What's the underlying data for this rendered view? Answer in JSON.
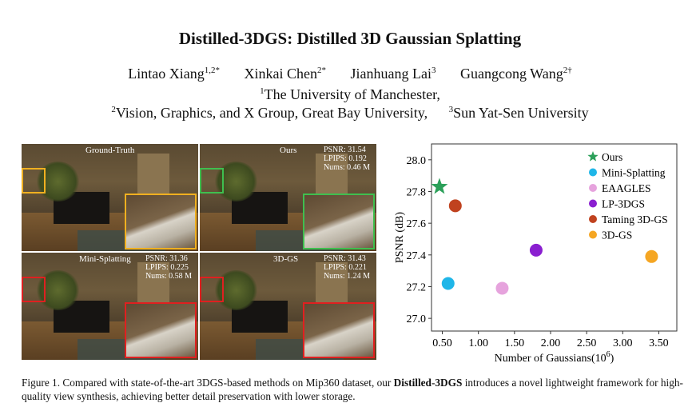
{
  "paper": {
    "title": "Distilled-3DGS: Distilled 3D Gaussian Splatting",
    "authors": [
      {
        "name": "Lintao Xiang",
        "sup": "1,2*"
      },
      {
        "name": "Xinkai Chen",
        "sup": "2*"
      },
      {
        "name": "Jianhuang Lai",
        "sup": "3"
      },
      {
        "name": "Guangcong Wang",
        "sup": "2†"
      }
    ],
    "affiliations": [
      {
        "sup": "1",
        "text": "The University of Manchester,"
      },
      {
        "sup": "2",
        "text": "Vision, Graphics, and X Group, Great Bay University,"
      },
      {
        "sup": "3",
        "text": "Sun Yat-Sen University"
      }
    ]
  },
  "figure": {
    "panels": [
      {
        "label": "Ground-Truth",
        "psnr": "",
        "lpips": "",
        "nums": "",
        "roi_color": "#f0b020"
      },
      {
        "label": "Ours",
        "psnr": "PSNR: 31.54",
        "lpips": "LPIPS: 0.192",
        "nums": "Nums: 0.46 M",
        "roi_color": "#3fbf4f"
      },
      {
        "label": "Mini-Splatting",
        "psnr": "PSNR: 31.36",
        "lpips": "LPIPS: 0.225",
        "nums": "Nums: 0.58 M",
        "roi_color": "#e02020"
      },
      {
        "label": "3D-GS",
        "psnr": "PSNR: 31.43",
        "lpips": "LPIPS: 0.221",
        "nums": "Nums: 1.24 M",
        "roi_color": "#e02020"
      }
    ],
    "caption": {
      "prefix": "Figure 1. Compared with state-of-the-art 3DGS-based methods on Mip360 dataset, our ",
      "bold": "Distilled-3DGS",
      "suffix": " introduces a novel lightweight framework for high-quality view synthesis, achieving better detail preservation with lower storage."
    }
  },
  "chart_data": {
    "type": "scatter",
    "xlabel": "Number of Gaussians(10",
    "xlabel_sup": "6",
    "xlabel_close": ")",
    "ylabel": "PSNR (dB)",
    "xlim": [
      0.35,
      3.75
    ],
    "ylim": [
      26.92,
      28.1
    ],
    "xticks": [
      "0.50",
      "1.00",
      "1.50",
      "2.00",
      "2.50",
      "3.00",
      "3.50"
    ],
    "yticks": [
      "27.0",
      "27.2",
      "27.4",
      "27.6",
      "27.8",
      "28.0"
    ],
    "legend_position": "top-right",
    "grid": false,
    "series": [
      {
        "name": "Ours",
        "marker": "star",
        "color": "#2ca05a",
        "x": 0.46,
        "y": 27.83
      },
      {
        "name": "Mini-Splatting",
        "marker": "circle",
        "color": "#1fb6e8",
        "x": 0.58,
        "y": 27.22
      },
      {
        "name": "EAAGLES",
        "marker": "circle",
        "color": "#e6a3dd",
        "x": 1.33,
        "y": 27.19
      },
      {
        "name": "LP-3DGS",
        "marker": "circle",
        "color": "#8a1fd0",
        "x": 1.8,
        "y": 27.43
      },
      {
        "name": "Taming 3D-GS",
        "marker": "circle",
        "color": "#c0421f",
        "x": 0.68,
        "y": 27.71
      },
      {
        "name": "3D-GS",
        "marker": "circle",
        "color": "#f5a623",
        "x": 3.4,
        "y": 27.39
      }
    ]
  }
}
